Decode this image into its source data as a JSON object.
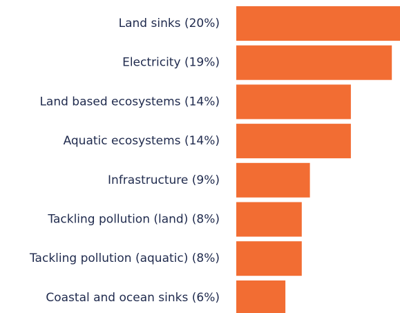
{
  "chart_data": {
    "type": "bar",
    "orientation": "horizontal",
    "categories": [
      "Land sinks (20%)",
      "Electricity (19%)",
      "Land based ecosystems (14%)",
      "Aquatic ecosystems (14%)",
      "Infrastructure (9%)",
      "Tackling pollution (land) (8%)",
      "Tackling pollution (aquatic) (8%)",
      "Coastal and ocean sinks (6%)"
    ],
    "values": [
      20,
      19,
      14,
      14,
      9,
      8,
      8,
      6
    ],
    "title": "",
    "xlabel": "",
    "ylabel": "",
    "xlim": [
      0,
      20
    ],
    "grid": false,
    "legend": "none",
    "bar_color": "#f26d33",
    "label_color": "#1f2a4d"
  }
}
